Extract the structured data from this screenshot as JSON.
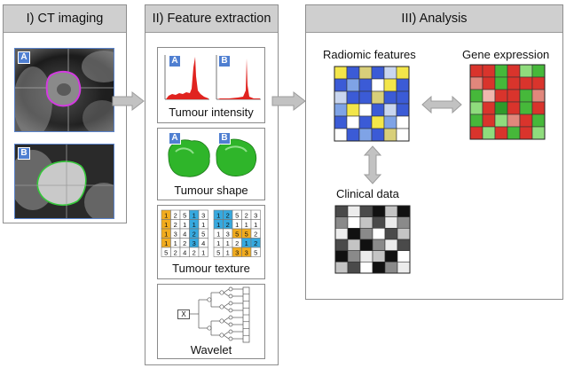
{
  "panels": {
    "ct": {
      "title": "I) CT imaging",
      "badges": [
        "A",
        "B"
      ]
    },
    "features": {
      "title": "II) Feature extraction",
      "intensity": {
        "caption": "Tumour intensity",
        "badges": [
          "A",
          "B"
        ]
      },
      "shape": {
        "caption": "Tumour shape",
        "badges": [
          "A",
          "B"
        ]
      },
      "texture": {
        "caption": "Tumour texture",
        "left_grid": [
          [
            "1",
            "2",
            "5",
            "1",
            "3"
          ],
          [
            "1",
            "2",
            "1",
            "1",
            "1"
          ],
          [
            "1",
            "3",
            "4",
            "2",
            "5"
          ],
          [
            "1",
            "1",
            "2",
            "3",
            "4"
          ],
          [
            "5",
            "2",
            "4",
            "2",
            "1"
          ]
        ],
        "right_grid": [
          [
            "1",
            "2",
            "5",
            "2",
            "3"
          ],
          [
            "1",
            "2",
            "1",
            "1",
            "1"
          ],
          [
            "1",
            "3",
            "5",
            "5",
            "2"
          ],
          [
            "1",
            "1",
            "2",
            "1",
            "2"
          ],
          [
            "5",
            "1",
            "3",
            "3",
            "5"
          ]
        ]
      },
      "wavelet": {
        "caption": "Wavelet",
        "input_symbol": "X"
      }
    },
    "analysis": {
      "title": "III) Analysis",
      "radiomic_label": "Radiomic features",
      "gene_label": "Gene expression",
      "clinical_label": "Clinical data"
    }
  },
  "colors": {
    "panel_header": "#cfcfcf",
    "badge": "#4f7fd1",
    "histogram": "#e0231f",
    "tumour_shape": "#2fb52a",
    "texture_orange": "#f2ac1e",
    "texture_blue": "#36a9df",
    "arrow": "#bdbdbd"
  }
}
